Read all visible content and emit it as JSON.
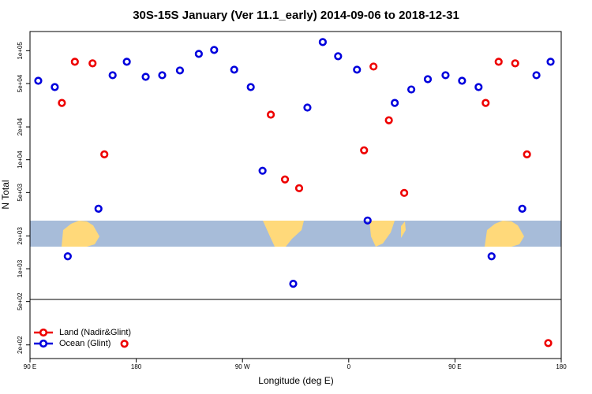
{
  "chart_data": {
    "type": "scatter",
    "title": "30S-15S January (Ver 11.1_early)   2014-09-06 to 2018-12-31",
    "xlabel": "Longitude (deg E)",
    "ylabel": "N Total",
    "log_y": true,
    "legend": "lower left",
    "xlim": [
      90,
      540
    ],
    "xticks": [
      {
        "value": 90,
        "label": "90 E"
      },
      {
        "value": 180,
        "label": "180"
      },
      {
        "value": 270,
        "label": "90 W"
      },
      {
        "value": 360,
        "label": "0"
      },
      {
        "value": 450,
        "label": "90 E"
      },
      {
        "value": 540,
        "label": "180"
      }
    ],
    "ylim": [
      150,
      150000
    ],
    "yticks": [
      {
        "value": 200,
        "label": "2e+02"
      },
      {
        "value": 500,
        "label": "5e+02"
      },
      {
        "value": 1000,
        "label": "1e+03"
      },
      {
        "value": 2000,
        "label": "2e+03"
      },
      {
        "value": 5000,
        "label": "5e+03"
      },
      {
        "value": 10000,
        "label": "1e+04"
      },
      {
        "value": 20000,
        "label": "2e+04"
      },
      {
        "value": 50000,
        "label": "5e+04"
      },
      {
        "value": 100000,
        "label": "1e+05"
      }
    ],
    "series": [
      {
        "name": "Land (Nadir&Glint)",
        "color": "#ee0000",
        "x": [
          117,
          128,
          143,
          153,
          170,
          294,
          306,
          318,
          373,
          381,
          394,
          407,
          476,
          487,
          501,
          511,
          529
        ],
        "values": [
          33200,
          79200,
          76600,
          11200,
          205,
          25900,
          6590,
          5480,
          12200,
          71600,
          23000,
          4960,
          33200,
          79200,
          76600,
          11200,
          208
        ]
      },
      {
        "name": "Ocean (Glint)",
        "color": "#0000dd",
        "x": [
          97,
          111,
          122,
          148,
          160,
          172,
          188,
          202,
          217,
          233,
          246,
          263,
          277,
          287,
          313,
          325,
          338,
          351,
          367,
          376,
          399,
          413,
          427,
          442,
          456,
          470,
          481,
          507,
          519,
          531
        ],
        "values": [
          53000,
          46400,
          1300,
          3550,
          59600,
          79200,
          57600,
          59600,
          65900,
          93500,
          101600,
          67000,
          46400,
          7920,
          728,
          30100,
          120000,
          89000,
          67000,
          2770,
          33200,
          44100,
          54800,
          59600,
          53000,
          46400,
          1300,
          3550,
          59600,
          79200
        ]
      }
    ]
  }
}
